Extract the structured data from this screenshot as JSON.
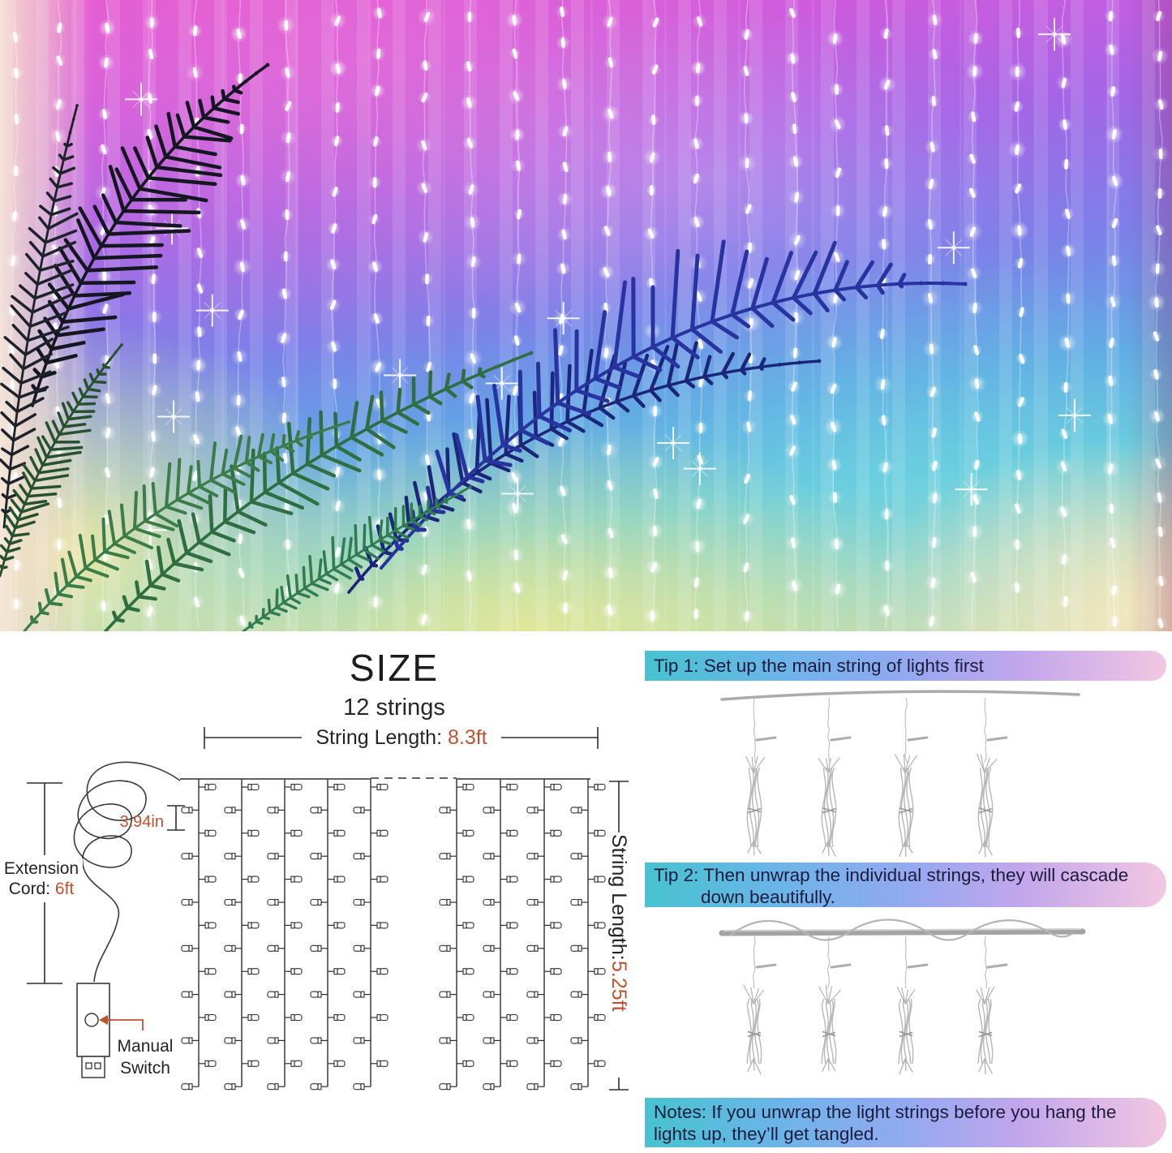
{
  "size": {
    "title": "SIZE",
    "strings_count_label": "12 strings",
    "top_dim": {
      "prefix": "String Length: ",
      "value": "8.3ft"
    },
    "side_dim": {
      "prefix": "String Length: ",
      "value": "5.25ft"
    },
    "bulb_spacing_value": "3.94in",
    "extension_cord": {
      "line1": "Extension",
      "line2_prefix": "Cord: ",
      "value": "6ft"
    },
    "manual_switch": {
      "line1": "Manual",
      "line2": "Switch"
    },
    "diagram": {
      "left_group_strings": 5,
      "right_group_strings": 4,
      "bulb_rows": 14
    }
  },
  "tips": {
    "tip1": {
      "text": "Tip 1: Set up the main string of lights first"
    },
    "tip2": {
      "line1": "Tip 2: Then unwrap the individual strings, they will cascade",
      "line2": "down beautifully."
    },
    "notes": {
      "line1": "Notes: If you unwrap the light strings before you hang the",
      "line2": "lights up, they’ll get tangled."
    }
  },
  "colors": {
    "accent": "#c0532f",
    "diagram_line": "#2f2f2f",
    "banner_text": "#1c1c3e",
    "banner_gradient_start": "#47c3cf",
    "banner_gradient_mid": "#93a9f0",
    "banner_gradient_end": "#f2c7e2"
  }
}
